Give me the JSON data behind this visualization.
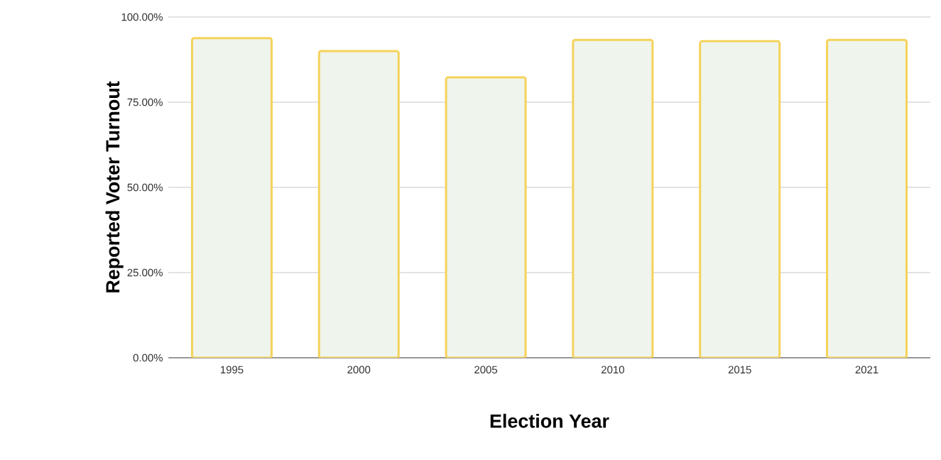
{
  "chart_data": {
    "type": "bar",
    "xlabel": "Election Year",
    "ylabel": "Reported Voter Turnout",
    "categories": [
      "1995",
      "2000",
      "2005",
      "2010",
      "2015",
      "2021"
    ],
    "values": [
      93.8,
      90.0,
      82.3,
      93.3,
      92.9,
      93.3
    ],
    "color": "#eff4ec",
    "ylim": [
      0,
      100
    ],
    "yticks": [
      {
        "value": 0,
        "label": "0.00%"
      },
      {
        "value": 25,
        "label": "25.00%"
      },
      {
        "value": 50,
        "label": "50.00%"
      },
      {
        "value": 75,
        "label": "75.00%"
      },
      {
        "value": 100,
        "label": "100.00%"
      }
    ],
    "grid": "y"
  }
}
